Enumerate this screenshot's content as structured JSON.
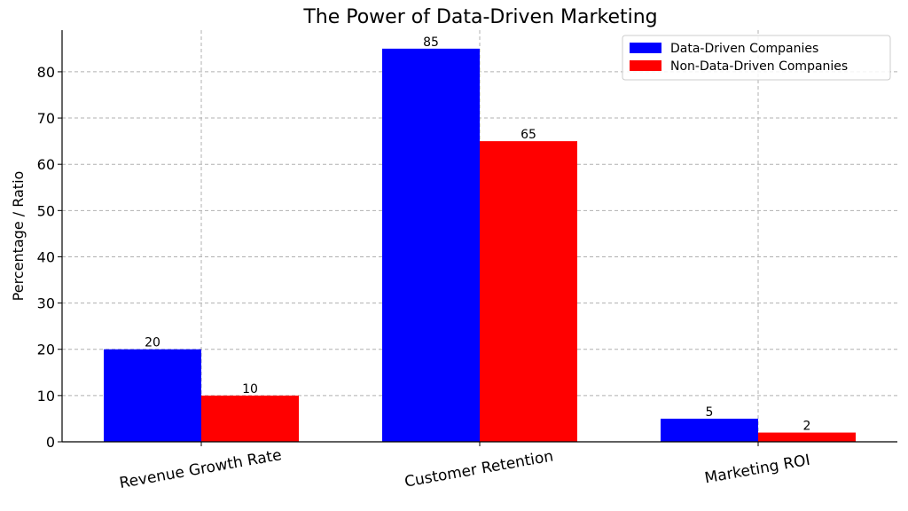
{
  "chart_data": {
    "type": "bar",
    "title": "The Power of Data-Driven Marketing",
    "xlabel": "",
    "ylabel": "Percentage / Ratio",
    "categories": [
      "Revenue Growth Rate",
      "Customer Retention",
      "Marketing ROI"
    ],
    "series": [
      {
        "name": "Data-Driven Companies",
        "values": [
          20,
          85,
          5
        ],
        "color": "#0000ff"
      },
      {
        "name": "Non-Data-Driven Companies",
        "values": [
          10,
          65,
          2
        ],
        "color": "#ff0000"
      }
    ],
    "ylim": [
      0,
      89
    ],
    "yticks": [
      0,
      10,
      20,
      30,
      40,
      50,
      60,
      70,
      80
    ],
    "grid": true,
    "legend": "top-right",
    "show_value_labels": true,
    "category_label_rotation": "slanted"
  }
}
